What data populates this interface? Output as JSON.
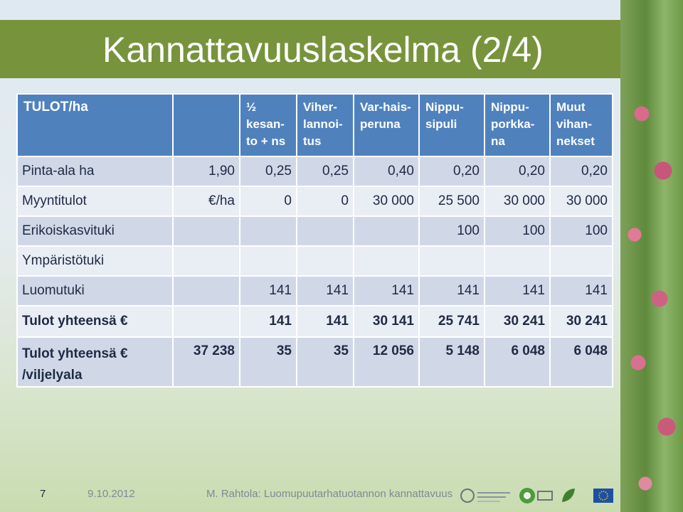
{
  "slide": {
    "title": "Kannattavuuslaskelma (2/4)"
  },
  "table": {
    "header": [
      "TULOT/ha",
      "",
      "½ kesan-to + ns",
      "Viher-lannoi-tus",
      "Var-hais-peruna",
      "Nippu-sipuli",
      "Nippu-porkka-na",
      "Muut vihan-nekset"
    ],
    "rows": [
      {
        "label": "Pinta-ala ha",
        "c1": "1,90",
        "c2": "0,25",
        "c3": "0,25",
        "c4": "0,40",
        "c5": "0,20",
        "c6": "0,20",
        "c7": "0,20"
      },
      {
        "label": "Myyntitulot",
        "c1": "€/ha",
        "c2": "0",
        "c3": "0",
        "c4": "30 000",
        "c5": "25 500",
        "c6": "30 000",
        "c7": "30 000"
      },
      {
        "label": "Erikoiskasvituki",
        "c1": "",
        "c2": "",
        "c3": "",
        "c4": "",
        "c5": "100",
        "c6": "100",
        "c7": "100"
      },
      {
        "label": "Ympäristötuki",
        "c1": "",
        "c2": "",
        "c3": "",
        "c4": "",
        "c5": "",
        "c6": "",
        "c7": ""
      },
      {
        "label": "Luomutuki",
        "c1": "",
        "c2": "141",
        "c3": "141",
        "c4": "141",
        "c5": "141",
        "c6": "141",
        "c7": "141"
      },
      {
        "label": "Tulot yhteensä €",
        "c1": "",
        "c2": "141",
        "c3": "141",
        "c4": "30 141",
        "c5": "25 741",
        "c6": "30 241",
        "c7": "30 241"
      },
      {
        "label": "Tulot yhteensä € /viljelyala",
        "c1": "37 238",
        "c2": "35",
        "c3": "35",
        "c4": "12 056",
        "c5": "5 148",
        "c6": "6 048",
        "c7": "6 048"
      }
    ]
  },
  "footer": {
    "page_number": "7",
    "date": "9.10.2012",
    "caption": "M. Rahtola: Luomupuutarhatuotannon kannattavuus"
  },
  "logos": [
    "mtt-logo",
    "agrifood-logo",
    "eu-flag-logo"
  ],
  "colors": {
    "title_band": "#77933c",
    "header_fill": "#4f81bd",
    "row_dark": "#d0d8e8",
    "row_light": "#e9edf4"
  }
}
